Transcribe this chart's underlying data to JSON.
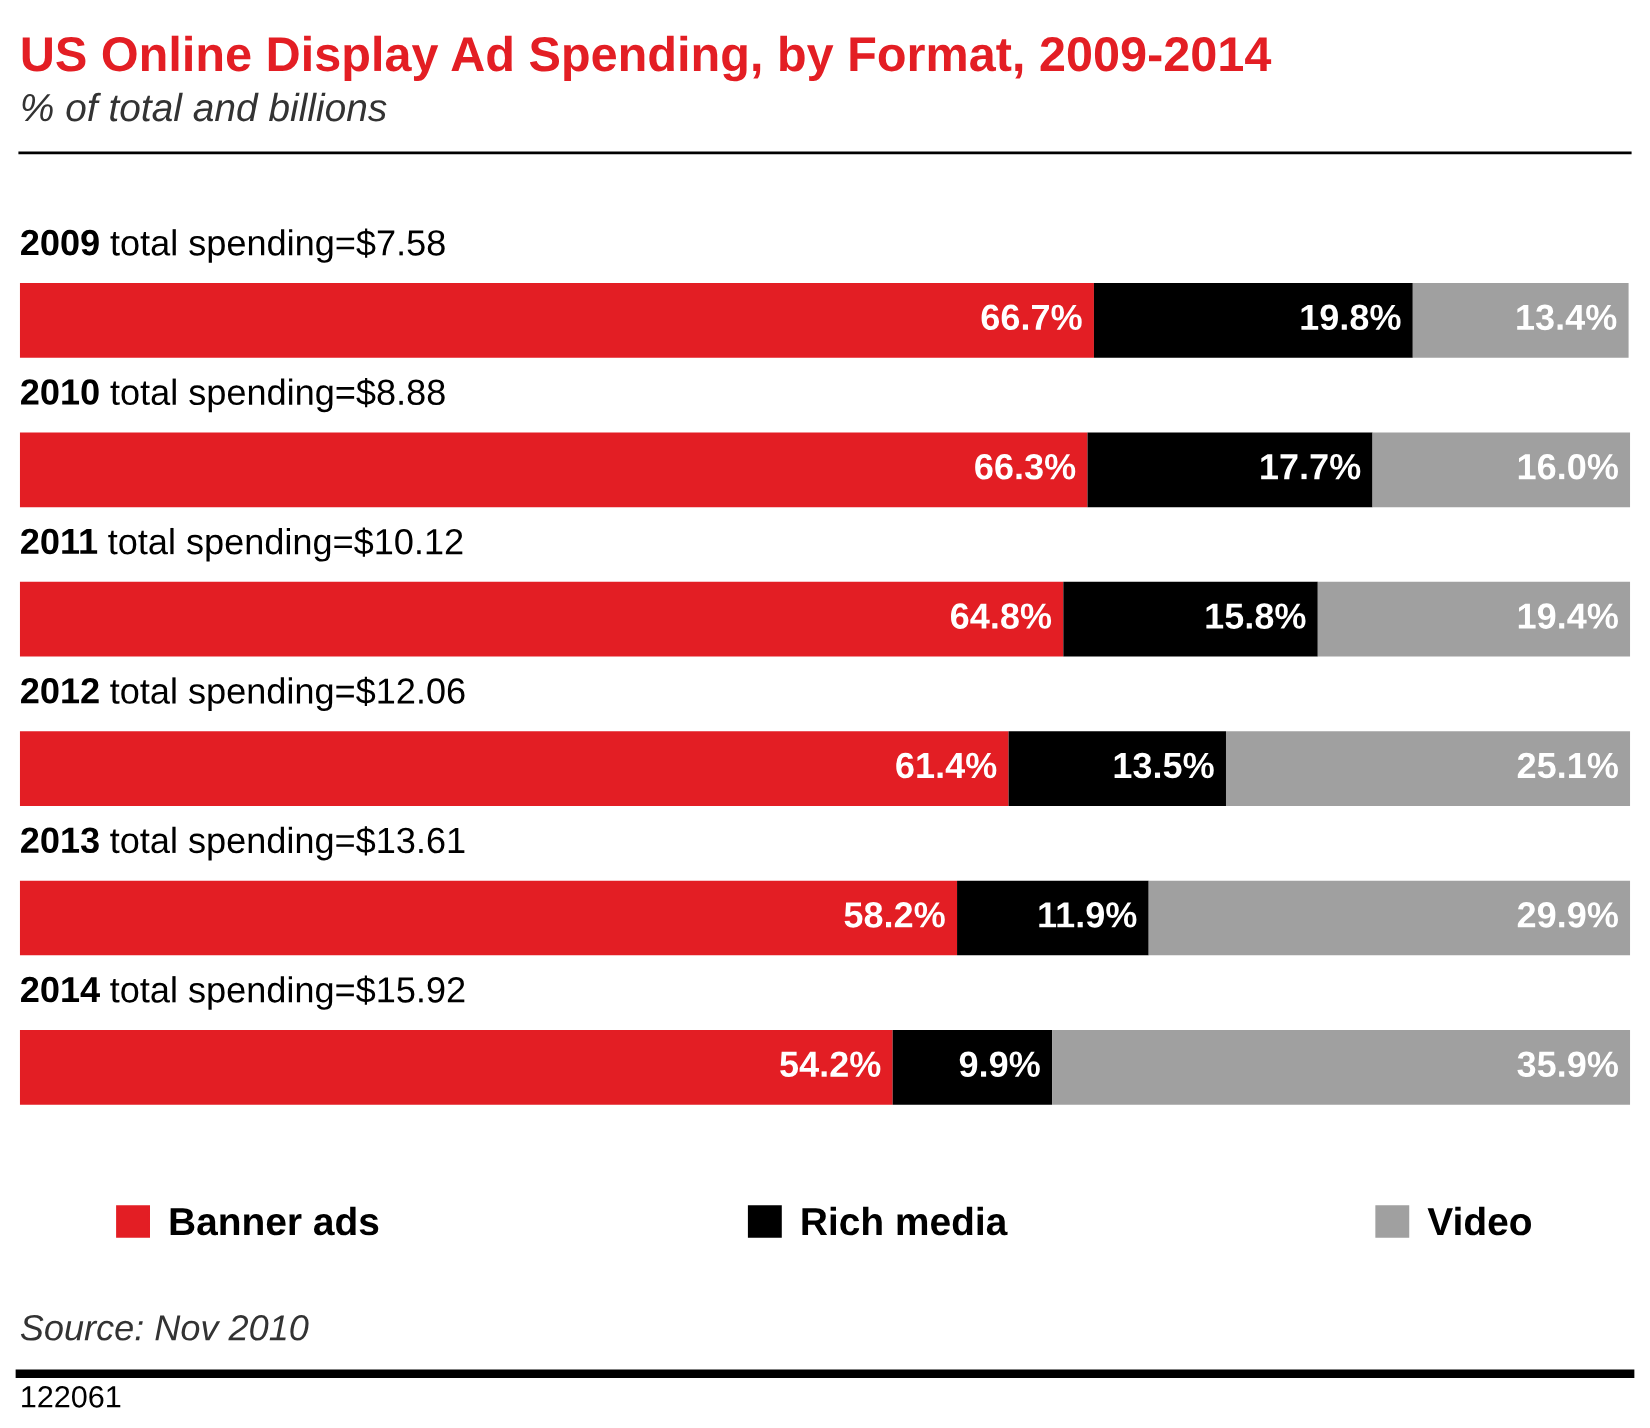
{
  "chart_data": {
    "type": "bar",
    "orientation": "horizontal",
    "stacked": true,
    "title": "US Online Display Ad Spending, by Format, 2009-2014",
    "subtitle": "% of total and billions",
    "categories": [
      "2009 total spending=$7.58",
      "2010 total spending=$8.88",
      "2011 total spending=$10.12",
      "2012 total spending=$12.06",
      "2013 total spending=$13.61",
      "2014 total spending=$15.92"
    ],
    "series": [
      {
        "name": "Banner ads",
        "color": "#e31e24",
        "values": [
          66.7,
          66.3,
          64.8,
          61.4,
          58.2,
          54.2
        ],
        "value_labels": [
          "66.7%",
          "66.3%",
          "64.8%",
          "61.4%",
          "58.2%",
          "54.2%"
        ]
      },
      {
        "name": "Rich media",
        "color": "#000000",
        "values": [
          19.8,
          17.7,
          15.8,
          13.5,
          11.9,
          9.9
        ],
        "value_labels": [
          "19.8%",
          "17.7%",
          "15.8%",
          "13.5%",
          "11.9%",
          "9.9%"
        ]
      },
      {
        "name": "Video",
        "color": "#a0a0a0",
        "values": [
          13.4,
          16.0,
          19.4,
          25.1,
          29.9,
          35.9
        ],
        "value_labels": [
          "13.4%",
          "16.0%",
          "19.4%",
          "25.1%",
          "29.9%",
          "35.9%"
        ]
      }
    ],
    "legend": "bottom",
    "annotations": [
      "Source: Nov 2010",
      "122061"
    ]
  }
}
